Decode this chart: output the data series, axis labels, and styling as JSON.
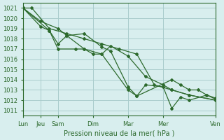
{
  "bg_color": "#d8eeee",
  "grid_color": "#aacccc",
  "line_color": "#2d6a2d",
  "marker_color": "#2d6a2d",
  "ylabel_min": 1011,
  "ylabel_max": 1021,
  "ytick_step": 1,
  "xlabel": "Pression niveau de la mer( hPa )",
  "xtick_labels": [
    "Lun",
    "Jeu",
    "Sam",
    "",
    "Dim",
    "",
    "Mar",
    "",
    "Mer",
    "",
    "",
    "Ven"
  ],
  "xtick_positions": [
    0,
    1,
    2,
    3,
    4,
    5,
    6,
    7,
    8,
    9,
    10,
    11
  ],
  "series": [
    [
      1021.0,
      1021.0,
      1019.0,
      1018.5,
      1018.0,
      1017.5,
      1017.0,
      1016.5,
      1013.5,
      1013.0,
      1012.5,
      1012.0
    ],
    [
      1021.0,
      1019.7,
      1019.0,
      1018.3,
      1017.0,
      1016.5,
      1016.5,
      1017.3,
      1016.3,
      1014.3,
      1013.5,
      1013.0,
      1012.5,
      1012.0
    ],
    [
      1021.0,
      1019.2,
      1018.8,
      1017.5,
      1018.3,
      1018.5,
      1017.2,
      1016.8,
      1013.3,
      1012.4,
      1014.0,
      1013.5,
      1013.0,
      1013.0,
      1012.5,
      1012.2
    ],
    [
      1021.0,
      1018.8,
      1017.0,
      1017.0,
      1017.0,
      1016.5,
      1013.0,
      1012.4,
      1013.5,
      1013.3,
      1011.2,
      1012.3,
      1012.0,
      1012.5,
      1012.1
    ]
  ],
  "series_x": [
    [
      0,
      0.5,
      1.5,
      2.5,
      3.5,
      4.5,
      5.5,
      6.5,
      7.5,
      8.5,
      9.5,
      11
    ],
    [
      0,
      1,
      2,
      2.5,
      3.5,
      4,
      4.5,
      5,
      6,
      7,
      8,
      8.5,
      9.5,
      11
    ],
    [
      0,
      1,
      1.5,
      2,
      2.5,
      3.5,
      4.5,
      5,
      6,
      6.5,
      8.5,
      9,
      9.5,
      10,
      10.5,
      11
    ],
    [
      0,
      1.5,
      2,
      3,
      3.5,
      4.5,
      6,
      6.5,
      7,
      8,
      8.5,
      9,
      9.5,
      10.5,
      11
    ]
  ]
}
